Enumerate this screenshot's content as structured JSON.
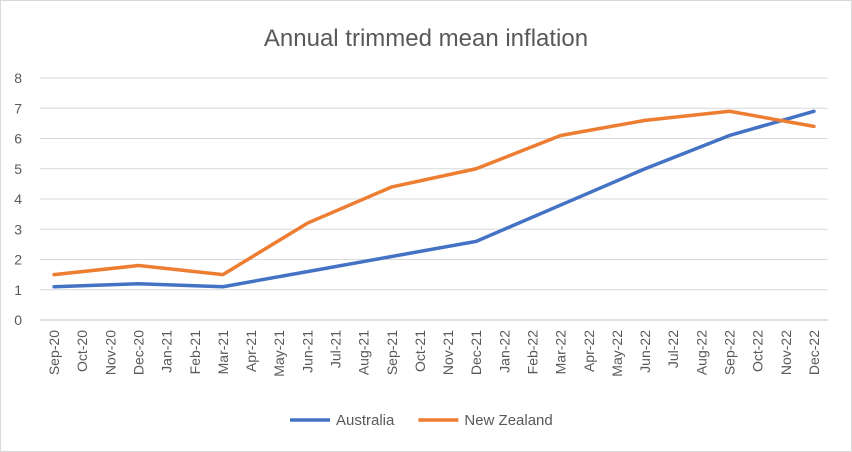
{
  "chart_data": {
    "type": "line",
    "title": "Annual trimmed mean inflation",
    "xlabel": "",
    "ylabel": "",
    "ylim": [
      0,
      8
    ],
    "yticks": [
      0,
      1,
      2,
      3,
      4,
      5,
      6,
      7,
      8
    ],
    "grid": true,
    "legend": "bottom",
    "categories": [
      "Sep-20",
      "Oct-20",
      "Nov-20",
      "Dec-20",
      "Jan-21",
      "Feb-21",
      "Mar-21",
      "Apr-21",
      "May-21",
      "Jun-21",
      "Jul-21",
      "Aug-21",
      "Sep-21",
      "Oct-21",
      "Nov-21",
      "Dec-21",
      "Jan-22",
      "Feb-22",
      "Mar-22",
      "Apr-22",
      "May-22",
      "Jun-22",
      "Jul-22",
      "Aug-22",
      "Sep-22",
      "Oct-22",
      "Nov-22",
      "Dec-22"
    ],
    "series": [
      {
        "name": "Australia",
        "color": "#4472c4",
        "points": [
          [
            "Sep-20",
            1.1
          ],
          [
            "Dec-20",
            1.2
          ],
          [
            "Mar-21",
            1.1
          ],
          [
            "Jun-21",
            1.6
          ],
          [
            "Sep-21",
            2.1
          ],
          [
            "Dec-21",
            2.6
          ],
          [
            "Mar-22",
            3.8
          ],
          [
            "Jun-22",
            5.0
          ],
          [
            "Sep-22",
            6.1
          ],
          [
            "Dec-22",
            6.9
          ]
        ]
      },
      {
        "name": "New Zealand",
        "color": "#ed7d31",
        "points": [
          [
            "Sep-20",
            1.5
          ],
          [
            "Dec-20",
            1.8
          ],
          [
            "Mar-21",
            1.5
          ],
          [
            "Jun-21",
            3.2
          ],
          [
            "Sep-21",
            4.4
          ],
          [
            "Dec-21",
            5.0
          ],
          [
            "Mar-22",
            6.1
          ],
          [
            "Jun-22",
            6.6
          ],
          [
            "Sep-22",
            6.9
          ],
          [
            "Dec-22",
            6.4
          ]
        ]
      }
    ]
  }
}
